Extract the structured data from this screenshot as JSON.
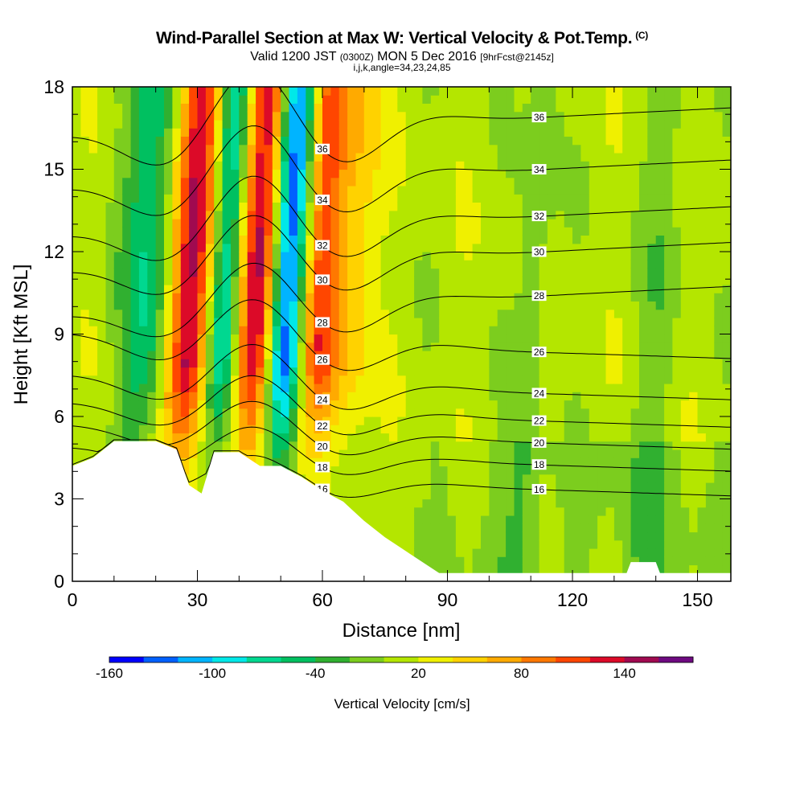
{
  "header": {
    "title": "Wind-Parallel Section at Max W: Vertical Velocity & Pot.Temp.",
    "title_mark": "(C)",
    "subtitle_a": "Valid 1200 JST",
    "subtitle_b": "(0300Z)",
    "subtitle_c": "MON 5 Dec 2016",
    "subtitle_d": "[9hrFcst@2145z]",
    "subsubtitle": "i,j,k,angle=34,23,24,85"
  },
  "chart_data": {
    "type": "contour-section",
    "xlabel": "Distance [nm]",
    "ylabel": "Height [Kft MSL]",
    "xlim": [
      0,
      158
    ],
    "ylim": [
      0,
      18
    ],
    "x_ticks": [
      0,
      30,
      60,
      90,
      120,
      150
    ],
    "y_ticks": [
      0,
      3,
      6,
      9,
      12,
      15,
      18
    ],
    "colorbar": {
      "title": "Vertical Velocity [cm/s]",
      "levels": [
        -160,
        -140,
        -120,
        -100,
        -80,
        -60,
        -40,
        -20,
        0,
        20,
        40,
        60,
        80,
        100,
        120,
        140,
        160
      ],
      "tick_labels": [
        "-160",
        "-100",
        "-40",
        "20",
        "80",
        "140"
      ],
      "colors": [
        "#0000ff",
        "#0060ff",
        "#00b4ff",
        "#00e8e8",
        "#00d890",
        "#00c060",
        "#30b030",
        "#7ccd1e",
        "#b4e600",
        "#f0f000",
        "#ffd200",
        "#ffaa00",
        "#ff7800",
        "#ff4600",
        "#dc0a28",
        "#a00a50",
        "#6e0a80"
      ]
    },
    "terrain_kft": [
      [
        0,
        4.2
      ],
      [
        5,
        4.5
      ],
      [
        10,
        5.1
      ],
      [
        20,
        5.1
      ],
      [
        25,
        4.8
      ],
      [
        28,
        3.5
      ],
      [
        31,
        3.2
      ],
      [
        34,
        4.7
      ],
      [
        40,
        4.7
      ],
      [
        45,
        4.2
      ],
      [
        50,
        4.2
      ],
      [
        55,
        3.8
      ],
      [
        60,
        3.3
      ],
      [
        65,
        2.9
      ],
      [
        70,
        2.2
      ],
      [
        75,
        1.6
      ],
      [
        80,
        1.1
      ],
      [
        85,
        0.6
      ],
      [
        88,
        0.3
      ],
      [
        90,
        0.3
      ],
      [
        133,
        0.3
      ],
      [
        134,
        0.7
      ],
      [
        140,
        0.7
      ],
      [
        141,
        0.3
      ],
      [
        158,
        0.3
      ]
    ],
    "velocity_bands": [
      {
        "x": 28,
        "value": 150,
        "width": 4
      },
      {
        "x": 36,
        "value": -110,
        "width": 3
      },
      {
        "x": 44,
        "value": 140,
        "width": 3.5
      },
      {
        "x": 51,
        "value": -150,
        "width": 3
      },
      {
        "x": 59,
        "value": 90,
        "width": 3
      },
      {
        "x": 66,
        "value": 50,
        "width": 4
      },
      {
        "x": 18,
        "value": -70,
        "width": 5
      },
      {
        "x": 110,
        "value": -25,
        "width": 3
      },
      {
        "x": 140,
        "value": -20,
        "width": 4
      }
    ],
    "theta_contours": [
      {
        "label": "16",
        "base_kft": 3.6
      },
      {
        "label": "18",
        "base_kft": 4.5
      },
      {
        "label": "20",
        "base_kft": 5.3
      },
      {
        "label": "22",
        "base_kft": 6.1
      },
      {
        "label": "24",
        "base_kft": 7.1
      },
      {
        "label": "26",
        "base_kft": 8.6
      },
      {
        "label": "28",
        "base_kft": 10.0
      },
      {
        "label": "30",
        "base_kft": 11.6
      },
      {
        "label": "32",
        "base_kft": 12.9
      },
      {
        "label": "34",
        "base_kft": 14.6
      },
      {
        "label": "36",
        "base_kft": 16.5
      }
    ]
  }
}
